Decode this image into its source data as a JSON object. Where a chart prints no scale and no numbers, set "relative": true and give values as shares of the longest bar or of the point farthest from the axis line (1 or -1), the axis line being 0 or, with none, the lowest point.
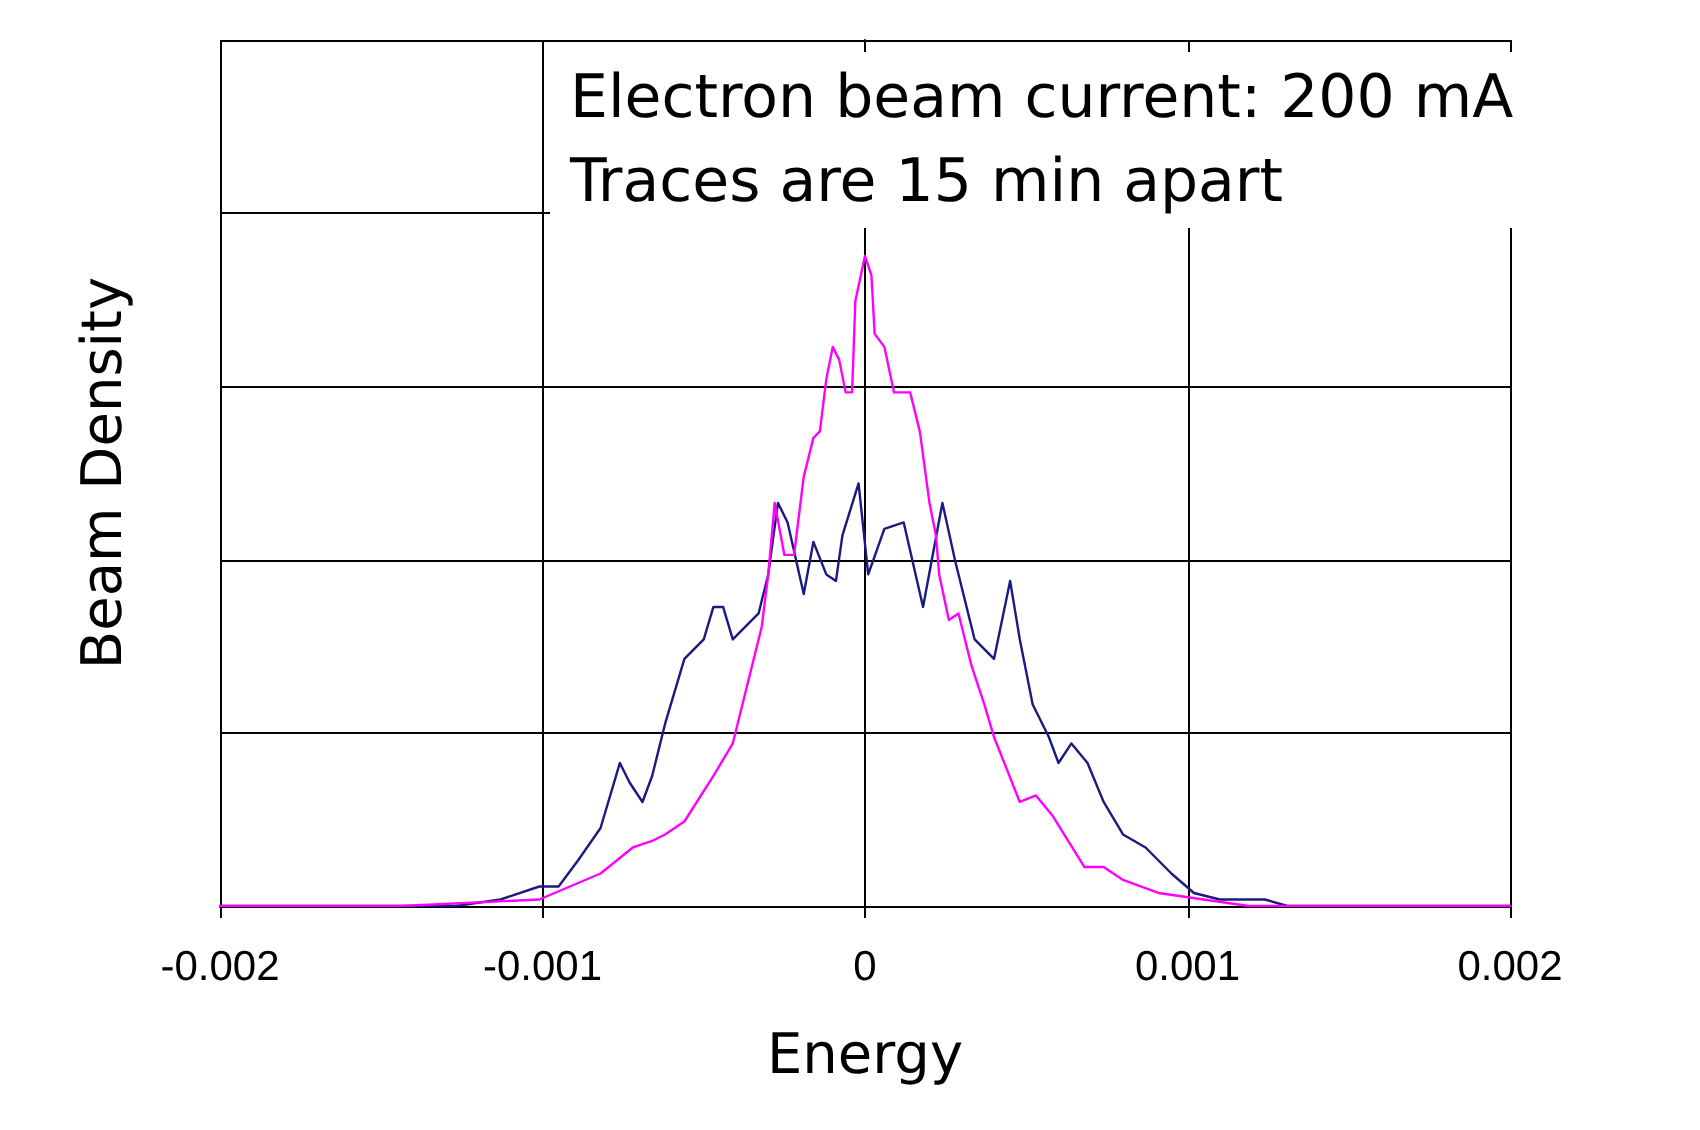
{
  "chart_data": {
    "type": "line",
    "relative": true,
    "xlabel": "Energy",
    "ylabel": "Beam Density",
    "annotations": [
      "Electron beam current: 200 mA",
      "Traces are 15 min apart"
    ],
    "xlim": [
      -0.002,
      0.002
    ],
    "xticks": [
      -0.002,
      -0.001,
      0,
      0.001,
      0.002
    ],
    "grid": true,
    "marker": "none",
    "line_style": "solid",
    "series": [
      {
        "color": "#1a1a80",
        "x": [
          -0.002,
          -0.00127,
          -0.00113,
          -0.00101,
          -0.00095,
          -0.00089,
          -0.00082,
          -0.00076,
          -0.00073,
          -0.00069,
          -0.00066,
          -0.00062,
          -0.00056,
          -0.0005,
          -0.00047,
          -0.00044,
          -0.00041,
          -0.00033,
          -0.0003,
          -0.00027,
          -0.00024,
          -0.00019,
          -0.00016,
          -0.00012,
          -9e-05,
          -7e-05,
          -2e-05,
          1e-05,
          6e-05,
          0.00012,
          0.00018,
          0.00024,
          0.00028,
          0.00034,
          0.0004,
          0.00045,
          0.00048,
          0.00052,
          0.00057,
          0.0006,
          0.00064,
          0.00069,
          0.00074,
          0.0008,
          0.00087,
          0.00095,
          0.00102,
          0.0011,
          0.00124,
          0.00131,
          0.002
        ],
        "values": [
          0,
          0,
          0.01,
          0.03,
          0.03,
          0.07,
          0.12,
          0.22,
          0.19,
          0.16,
          0.2,
          0.28,
          0.38,
          0.41,
          0.46,
          0.46,
          0.41,
          0.45,
          0.51,
          0.62,
          0.59,
          0.48,
          0.56,
          0.51,
          0.5,
          0.57,
          0.65,
          0.51,
          0.58,
          0.59,
          0.46,
          0.62,
          0.53,
          0.41,
          0.38,
          0.5,
          0.41,
          0.31,
          0.26,
          0.22,
          0.25,
          0.22,
          0.16,
          0.11,
          0.09,
          0.05,
          0.02,
          0.01,
          0.01,
          0,
          0
        ]
      },
      {
        "color": "#ff00ff",
        "x": [
          -0.002,
          -0.00144,
          -0.00101,
          -0.00082,
          -0.00072,
          -0.00066,
          -0.00062,
          -0.00056,
          -0.00047,
          -0.00041,
          -0.00038,
          -0.00035,
          -0.00032,
          -0.0003,
          -0.00028,
          -0.00025,
          -0.00022,
          -0.00019,
          -0.00016,
          -0.00014,
          -0.00012,
          -0.0001,
          -8e-05,
          -6e-05,
          -4e-05,
          -3e-05,
          0,
          2e-05,
          3e-05,
          6e-05,
          9e-05,
          0.00014,
          0.00017,
          0.0002,
          0.00022,
          0.00023,
          0.00026,
          0.00029,
          0.00033,
          0.00037,
          0.0004,
          0.00048,
          0.00053,
          0.00058,
          0.00063,
          0.00068,
          0.00074,
          0.0008,
          0.00091,
          0.00105,
          0.00119,
          0.002
        ],
        "values": [
          0,
          0,
          0.01,
          0.05,
          0.09,
          0.1,
          0.11,
          0.13,
          0.2,
          0.25,
          0.31,
          0.37,
          0.43,
          0.51,
          0.62,
          0.54,
          0.54,
          0.66,
          0.72,
          0.73,
          0.81,
          0.86,
          0.84,
          0.79,
          0.79,
          0.93,
          1,
          0.97,
          0.88,
          0.86,
          0.79,
          0.79,
          0.73,
          0.62,
          0.57,
          0.51,
          0.44,
          0.45,
          0.37,
          0.31,
          0.26,
          0.16,
          0.17,
          0.14,
          0.1,
          0.06,
          0.06,
          0.04,
          0.02,
          0.01,
          0,
          0
        ]
      }
    ]
  }
}
